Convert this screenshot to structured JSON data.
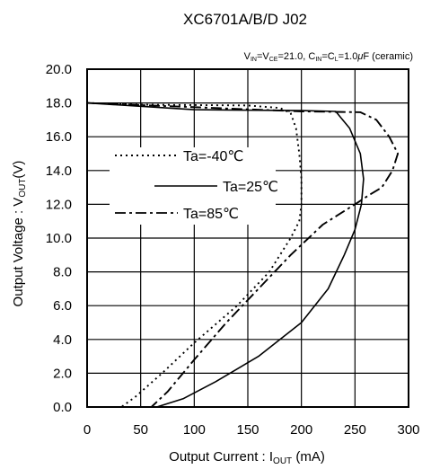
{
  "chart_data": {
    "type": "line",
    "title": "XC6701A/B/D J02",
    "condition": {
      "vin_label": "V",
      "vin_sub": "IN",
      "vce_sub": "CE",
      "vin_vce_value": "=V",
      "vin_vce_rest": "=21.0, C",
      "cin_sub": "IN",
      "cl_label": "=C",
      "cl_sub": "L",
      "cap_value": "=1.0",
      "mu": "μ",
      "cap_tail": "F (ceramic)"
    },
    "xlabel": "Output Current : I",
    "xlabel_sub": "OUT",
    "xlabel_unit": " (mA)",
    "ylabel": "Output Voltage : V",
    "ylabel_sub": "OUT",
    "ylabel_unit": "(V)",
    "xlim": [
      0,
      300
    ],
    "ylim": [
      0,
      20
    ],
    "x_ticks": [
      "0",
      "50",
      "100",
      "150",
      "200",
      "250",
      "300"
    ],
    "y_ticks": [
      "0.0",
      "2.0",
      "4.0",
      "6.0",
      "8.0",
      "10.0",
      "12.0",
      "14.0",
      "16.0",
      "18.0",
      "20.0"
    ],
    "grid": true,
    "legend_position": "center-left",
    "series": [
      {
        "name": "Ta=-40℃",
        "dash": "dotted",
        "points": [
          [
            0,
            18.0
          ],
          [
            50,
            17.9
          ],
          [
            150,
            17.85
          ],
          [
            180,
            17.7
          ],
          [
            190,
            17.4
          ],
          [
            195,
            16.5
          ],
          [
            198,
            15.0
          ],
          [
            200,
            13.5
          ],
          [
            200,
            12.0
          ],
          [
            198,
            11.0
          ],
          [
            190,
            10.0
          ],
          [
            170,
            8.0
          ],
          [
            140,
            6.0
          ],
          [
            100,
            3.8
          ],
          [
            70,
            2.0
          ],
          [
            45,
            0.6
          ],
          [
            32,
            0.0
          ]
        ]
      },
      {
        "name": "Ta=25℃",
        "dash": "solid",
        "points": [
          [
            0,
            18.0
          ],
          [
            100,
            17.6
          ],
          [
            200,
            17.55
          ],
          [
            232,
            17.5
          ],
          [
            245,
            16.5
          ],
          [
            255,
            15.0
          ],
          [
            258,
            13.5
          ],
          [
            256,
            12.0
          ],
          [
            250,
            10.5
          ],
          [
            240,
            9.0
          ],
          [
            225,
            7.0
          ],
          [
            200,
            5.0
          ],
          [
            160,
            3.0
          ],
          [
            120,
            1.5
          ],
          [
            90,
            0.5
          ],
          [
            65,
            0.0
          ]
        ]
      },
      {
        "name": "Ta=85℃",
        "dash": "dashdot",
        "points": [
          [
            0,
            18.0
          ],
          [
            200,
            17.5
          ],
          [
            255,
            17.45
          ],
          [
            270,
            17.0
          ],
          [
            282,
            16.0
          ],
          [
            290,
            15.0
          ],
          [
            285,
            14.0
          ],
          [
            275,
            13.0
          ],
          [
            262,
            12.5
          ],
          [
            250,
            12.0
          ],
          [
            220,
            10.8
          ],
          [
            190,
            9.0
          ],
          [
            160,
            7.0
          ],
          [
            130,
            5.0
          ],
          [
            100,
            2.8
          ],
          [
            75,
            0.9
          ],
          [
            60,
            0.0
          ]
        ]
      }
    ]
  }
}
